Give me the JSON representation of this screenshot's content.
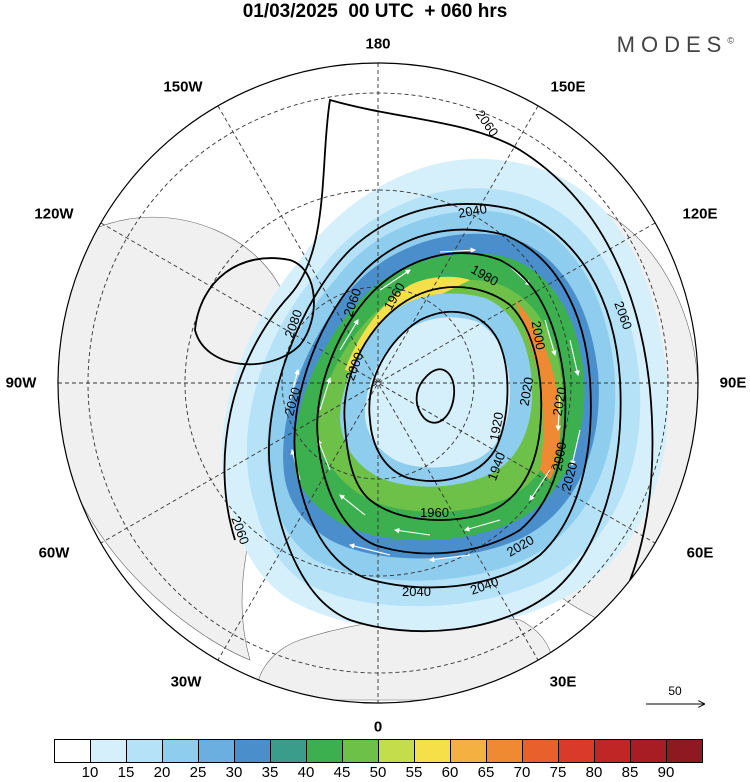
{
  "header": {
    "title": "01/03/2025  00 UTC  + 060 hrs",
    "brand": "MODES",
    "brand_mark": "©"
  },
  "longitude_labels": {
    "top": "180",
    "bottom": "0",
    "left": "90W",
    "right": "90E",
    "l150w": "150W",
    "l120w": "120W",
    "l60w": "60W",
    "l30w": "30W",
    "l150e": "150E",
    "l120e": "120E",
    "l60e": "60E",
    "l30e": "30E"
  },
  "contour_labels": [
    "2060",
    "2040",
    "2080",
    "2060",
    "1960",
    "1980",
    "2000",
    "2000",
    "1920",
    "1940",
    "2020",
    "2020",
    "2000",
    "2020",
    "1960",
    "2020",
    "2040",
    "2040",
    "2060",
    "2060",
    "2020"
  ],
  "vector_reference": {
    "label": "50"
  },
  "colorbar": {
    "labels": [
      "10",
      "15",
      "20",
      "25",
      "30",
      "35",
      "40",
      "45",
      "50",
      "55",
      "60",
      "65",
      "70",
      "75",
      "80",
      "85",
      "90"
    ],
    "colors": [
      "#ffffff",
      "#d6f0fb",
      "#b5e2f7",
      "#8fcdee",
      "#6aafe0",
      "#4a8fcb",
      "#3a9c8a",
      "#3cb04e",
      "#6dc149",
      "#c4dd4a",
      "#f6e04a",
      "#f4b041",
      "#ef8a33",
      "#e8602c",
      "#d93a2a",
      "#c02626",
      "#a81c24",
      "#8e1920"
    ]
  }
}
